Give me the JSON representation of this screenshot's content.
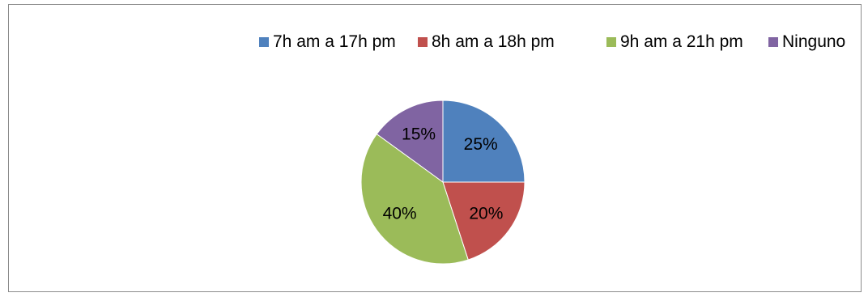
{
  "chart_data": {
    "type": "pie",
    "title": "",
    "categories": [
      "7h am a 17h pm",
      "8h am a 18h pm",
      "9h am a 21h pm",
      "Ninguno"
    ],
    "values": [
      25,
      20,
      40,
      15
    ],
    "labels": [
      "25%",
      "20%",
      "40%",
      "15%"
    ],
    "colors": [
      "#4f81bd",
      "#c0504d",
      "#9bbb59",
      "#8064a2"
    ],
    "legend_position": "top"
  }
}
